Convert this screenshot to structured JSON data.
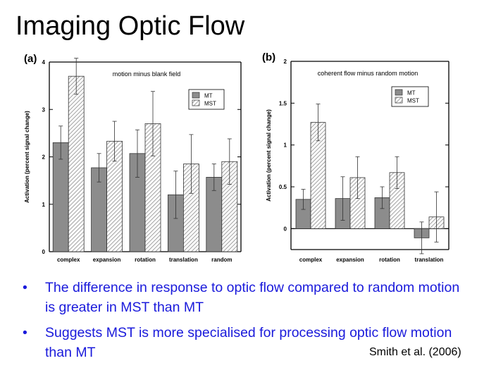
{
  "slide": {
    "title": "Imaging Optic Flow",
    "bullets": [
      "The difference in response to optic flow compared to random  motion is greater in MST than MT",
      "Suggests MST is more specialised for processing optic flow motion than MT"
    ],
    "citation": "Smith et al.  (2006)"
  },
  "colors": {
    "mt": "#8c8c8c",
    "mst_hatch": "#999999",
    "bullet_text": "#1a1adb"
  },
  "chart_data": [
    {
      "type": "bar",
      "panel_label": "(a)",
      "title": "motion minus blank field",
      "xlabel": "",
      "ylabel": "Activation (percent signal change)",
      "ylim": [
        0,
        4
      ],
      "yticks": [
        "0",
        "1",
        "2",
        "3",
        "4"
      ],
      "categories": [
        "complex",
        "expansion",
        "rotation",
        "translation",
        "random"
      ],
      "series": [
        {
          "name": "MT",
          "values": [
            2.3,
            1.77,
            2.07,
            1.2,
            1.57
          ],
          "err": [
            0.35,
            0.3,
            0.5,
            0.5,
            0.28
          ]
        },
        {
          "name": "MST",
          "values": [
            3.7,
            2.33,
            2.7,
            1.85,
            1.9
          ],
          "err": [
            0.38,
            0.42,
            0.68,
            0.62,
            0.48
          ]
        }
      ],
      "legend_position": "top-right",
      "grid": false
    },
    {
      "type": "bar",
      "panel_label": "(b)",
      "title": "coherent flow minus random motion",
      "xlabel": "",
      "ylabel": "Activation (percent signal change)",
      "ylim": [
        -0.25,
        2
      ],
      "yticks": [
        "0",
        "0.5",
        "1",
        "1.5",
        "2"
      ],
      "categories": [
        "complex",
        "expansion",
        "rotation",
        "translation"
      ],
      "series": [
        {
          "name": "MT",
          "values": [
            0.35,
            0.36,
            0.37,
            -0.11
          ],
          "err": [
            0.12,
            0.26,
            0.13,
            0.19
          ]
        },
        {
          "name": "MST",
          "values": [
            1.27,
            0.61,
            0.67,
            0.14
          ],
          "err": [
            0.22,
            0.25,
            0.19,
            0.3
          ]
        }
      ],
      "legend_position": "top-right",
      "grid": false
    }
  ]
}
